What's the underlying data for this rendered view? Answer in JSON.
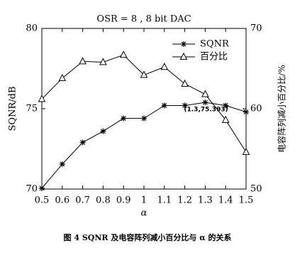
{
  "chart_data": {
    "type": "line",
    "title": "OSR = 8 , 8 bit  DAC",
    "x_label": "α",
    "y_label": "SQNR/dB",
    "y2_label": "电容阵列减小百分比/%",
    "caption": "图 4  SQNR 及电容阵列减小百分比与 α 的关系",
    "x": [
      0.5,
      0.6,
      0.7,
      0.8,
      0.9,
      1.0,
      1.1,
      1.2,
      1.3,
      1.4,
      1.5
    ],
    "xlim": [
      0.5,
      1.5
    ],
    "xticks": [
      0.5,
      0.6,
      0.7,
      0.8,
      0.9,
      1,
      1.1,
      1.2,
      1.3,
      1.4,
      1.5
    ],
    "ylim": [
      70,
      80
    ],
    "yticks": [
      70,
      75,
      80
    ],
    "y2lim": [
      50,
      70
    ],
    "y2ticks": [
      50,
      60,
      70
    ],
    "legend": "upper right",
    "series": [
      {
        "name": "SQNR",
        "color": "#000000",
        "marker": "star",
        "axis": "y",
        "values": [
          70.05,
          71.55,
          72.9,
          73.6,
          74.4,
          74.4,
          75.2,
          75.2,
          75.393,
          75.2,
          74.8
        ]
      },
      {
        "name": "百分比",
        "color": "#000000",
        "marker": "triangle",
        "axis": "y2",
        "values": [
          61.2,
          63.8,
          65.9,
          65.8,
          66.7,
          64.2,
          65.2,
          63.1,
          61.8,
          58.6,
          54.6
        ]
      }
    ],
    "annotations": [
      {
        "text": "(1.3,75.393)",
        "x": 1.3,
        "y": 75.393
      }
    ]
  }
}
